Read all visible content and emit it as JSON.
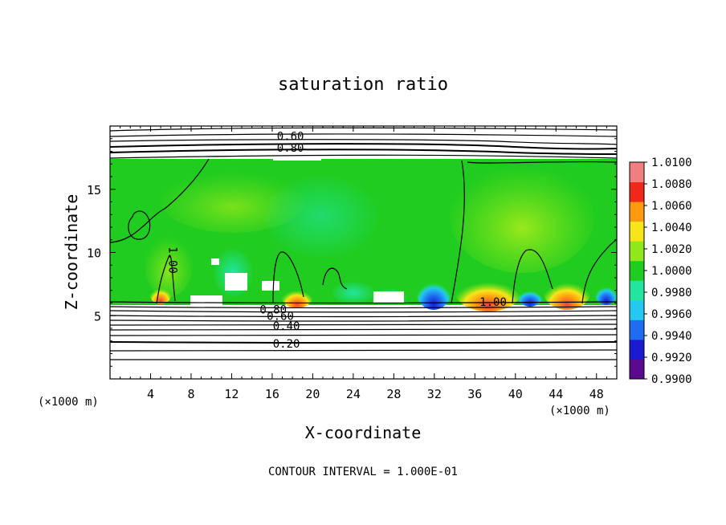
{
  "chart_data": {
    "type": "heatmap",
    "title": "saturation ratio",
    "xlabel": "X-coordinate",
    "ylabel": "Z-coordinate",
    "x_unit_left": "(×1000 m)",
    "x_unit_right": "(×1000 m)",
    "xlim": [
      0,
      50
    ],
    "ylim": [
      0,
      20
    ],
    "x_ticks": [
      4,
      8,
      12,
      16,
      20,
      24,
      28,
      32,
      36,
      40,
      44,
      48
    ],
    "y_ticks": [
      5,
      10,
      15
    ],
    "footer": "CONTOUR INTERVAL = 1.000E-01",
    "colorbar": {
      "min": 0.99,
      "max": 1.01,
      "labels": [
        "1.0100",
        "1.0080",
        "1.0060",
        "1.0040",
        "1.0020",
        "1.0000",
        "0.9980",
        "0.9960",
        "0.9940",
        "0.9920",
        "0.9900"
      ],
      "colors": [
        "#5a0a8c",
        "#1a1ad0",
        "#1f6cf0",
        "#25c8f0",
        "#22e6a0",
        "#1fcc1f",
        "#8ee81a",
        "#f5e61a",
        "#ff9a10",
        "#f0281a",
        "#f08080"
      ]
    },
    "contour_labels": [
      {
        "text": "0.60",
        "x": 17.8,
        "z": 19.2
      },
      {
        "text": "0.80",
        "x": 17.8,
        "z": 18.3
      },
      {
        "text": "1.00",
        "x": 6.2,
        "z": 9.4
      },
      {
        "text": "1.00",
        "x": 37.8,
        "z": 6.1
      },
      {
        "text": "0.80",
        "x": 16.1,
        "z": 5.5
      },
      {
        "text": "0.60",
        "x": 16.8,
        "z": 5.0
      },
      {
        "text": "0.40",
        "x": 17.4,
        "z": 4.2
      },
      {
        "text": "0.20",
        "x": 17.4,
        "z": 2.8
      }
    ]
  }
}
